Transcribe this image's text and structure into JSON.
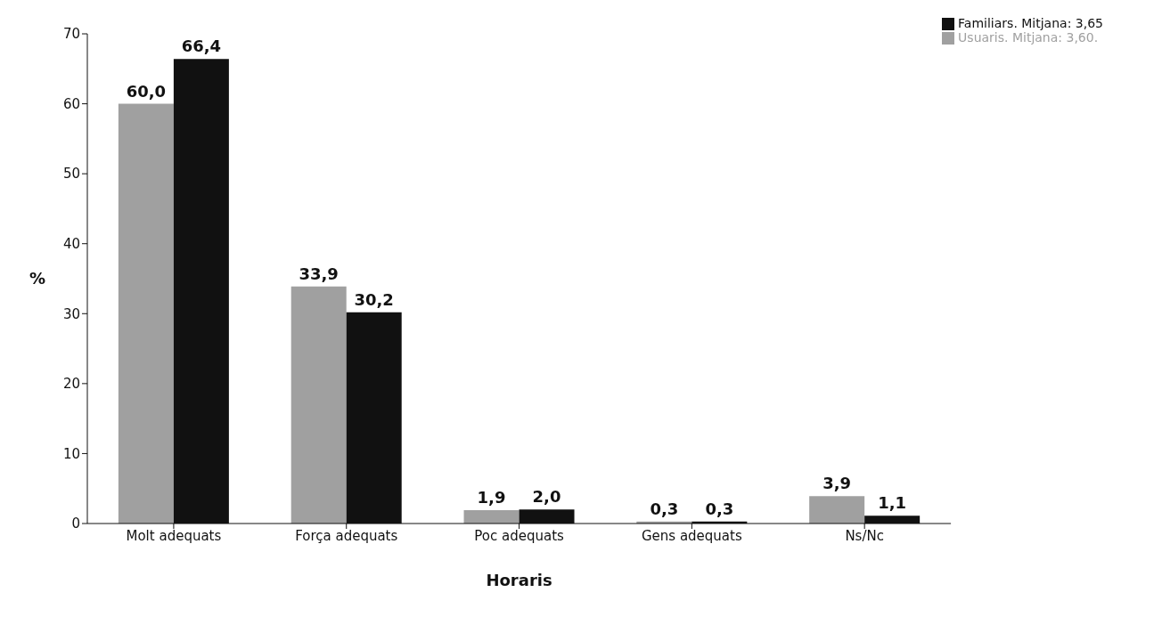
{
  "chart_data": {
    "type": "bar",
    "xlabel": "Horaris",
    "ylabel": "%",
    "categories": [
      "Molt adequats",
      "Força adequats",
      "Poc adequats",
      "Gens adequats",
      "Ns/Nc"
    ],
    "series": [
      {
        "name": "Usuaris. Mitjana: 3,60.",
        "color": "#a0a0a0",
        "values": [
          60.0,
          33.9,
          1.9,
          0.3,
          3.9
        ],
        "value_labels": [
          "60,0",
          "33,9",
          "1,9",
          "0,3",
          "3,9"
        ]
      },
      {
        "name": "Familiars. Mitjana: 3,65",
        "color": "#111111",
        "values": [
          66.4,
          30.2,
          2.0,
          0.3,
          1.1
        ],
        "value_labels": [
          "66,4",
          "30,2",
          "2,0",
          "0,3",
          "1,1"
        ]
      }
    ],
    "ylim": [
      0,
      70
    ],
    "yticks": [
      0,
      10,
      20,
      30,
      40,
      50,
      60,
      70
    ],
    "grid": false,
    "legend": "top right"
  }
}
